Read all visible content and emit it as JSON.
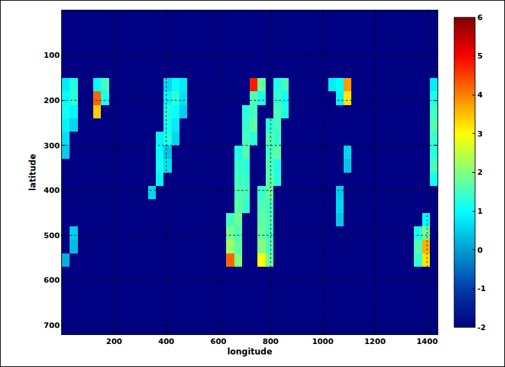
{
  "chart_data": {
    "type": "heatmap",
    "x_label": "longitude",
    "y_label": "latitude",
    "color": "jet",
    "grid": true,
    "xlim": [
      0,
      1440
    ],
    "ylim": [
      720,
      0
    ],
    "xticks": [
      200,
      400,
      600,
      800,
      1000,
      1200,
      1400
    ],
    "yticks": [
      100,
      200,
      300,
      400,
      500,
      600,
      700
    ],
    "clim": [
      -2,
      6
    ],
    "cticks": [
      -2,
      -1,
      0,
      1,
      2,
      3,
      4,
      5,
      6
    ],
    "x": [
      15,
      45,
      75,
      105,
      135,
      165,
      195,
      225,
      255,
      285,
      315,
      345,
      375,
      405,
      435,
      465,
      495,
      525,
      555,
      585,
      615,
      645,
      675,
      705,
      735,
      765,
      795,
      825,
      855,
      885,
      915,
      945,
      975,
      1005,
      1035,
      1065,
      1095,
      1125,
      1155,
      1185,
      1215,
      1245,
      1275,
      1305,
      1335,
      1365,
      1395,
      1425
    ],
    "y": [
      15,
      45,
      75,
      105,
      135,
      165,
      195,
      225,
      255,
      285,
      315,
      345,
      375,
      405,
      435,
      465,
      495,
      525,
      555,
      585,
      615,
      645,
      675,
      705
    ],
    "cells": [
      [
        -2,
        -2,
        -2,
        -2,
        -2,
        -2,
        -2,
        -2,
        -2,
        -2,
        -2,
        -2,
        -2,
        -2,
        -2,
        -2,
        -2,
        -2,
        -2,
        -2,
        -2,
        -2,
        -2,
        -2,
        -2,
        -2,
        -2,
        -2,
        -2,
        -2,
        -2,
        -2,
        -2,
        -2,
        -2,
        -2,
        -2,
        -2,
        -2,
        -2,
        -2,
        -2,
        -2,
        -2,
        -2,
        -2,
        -2,
        -2
      ],
      [
        -2,
        -2,
        -2,
        -2,
        -2,
        -2,
        -2,
        -2,
        -2,
        -2,
        -2,
        -2,
        -2,
        -2,
        -2,
        -2,
        -2,
        -2,
        -2,
        -2,
        -2,
        -2,
        -2,
        -2,
        -2,
        -2,
        -2,
        -2,
        -2,
        -2,
        -2,
        -2,
        -2,
        -2,
        -2,
        -2,
        -2,
        -2,
        -2,
        -2,
        -2,
        -2,
        -2,
        -2,
        -2,
        -2,
        -2,
        -2
      ],
      [
        -2,
        -2,
        -2,
        -2,
        -2,
        -2,
        -2,
        -2,
        -2,
        -2,
        -2,
        -2,
        -2,
        -2,
        -2,
        -2,
        -2,
        -2,
        -2,
        -2,
        -2,
        -2,
        -2,
        -2,
        -2,
        -2,
        -2,
        -2,
        -2,
        -2,
        -2,
        -2,
        -2,
        -2,
        -2,
        -2,
        -2,
        -2,
        -2,
        -2,
        -2,
        -2,
        -2,
        -2,
        -2,
        -2,
        -2,
        -2
      ],
      [
        -2,
        -2,
        -2,
        -2,
        -2,
        -2,
        -2,
        -2,
        -2,
        -2,
        -2,
        -2,
        -2,
        -2,
        -2,
        -2,
        -2,
        -2,
        -2,
        -2,
        -2,
        -2,
        -2,
        -2,
        -2,
        -2,
        -2,
        -2,
        -2,
        -2,
        -2,
        -2,
        -2,
        -2,
        -2,
        -2,
        -2,
        -2,
        -2,
        -2,
        -2,
        -2,
        -2,
        -2,
        -2,
        -2,
        -2,
        -2
      ],
      [
        -2,
        -2,
        -2,
        -2,
        -2,
        -2,
        -2,
        -2,
        -2,
        -2,
        -2,
        -2,
        -2,
        -2,
        -2,
        -2,
        -2,
        -2,
        -2,
        -2,
        -2,
        -2,
        -2,
        -2,
        -2,
        -2,
        -2,
        -2,
        -2,
        -2,
        -2,
        -2,
        -2,
        -2,
        -2,
        -2,
        -2,
        -2,
        -2,
        -2,
        -2,
        -2,
        -2,
        -2,
        -2,
        -2,
        -2,
        -2
      ],
      [
        0.8,
        1.2,
        -2,
        -2,
        1.0,
        1.5,
        -2,
        -2,
        -2,
        -2,
        -2,
        -2,
        -2,
        0.6,
        1.0,
        0.8,
        -2,
        -2,
        -2,
        -2,
        -2,
        -2,
        -2,
        -2,
        4.8,
        1.8,
        -2,
        1.2,
        1.5,
        -2,
        -2,
        -2,
        -2,
        -2,
        0.8,
        1.0,
        3.8,
        -2,
        -2,
        -2,
        -2,
        -2,
        -2,
        -2,
        -2,
        -2,
        -2,
        0.8
      ],
      [
        1.0,
        1.3,
        -2,
        -2,
        4.2,
        1.2,
        -2,
        -2,
        -2,
        -2,
        -2,
        -2,
        -2,
        0.9,
        1.3,
        0.7,
        -2,
        -2,
        -2,
        -2,
        -2,
        -2,
        -2,
        -2,
        1.6,
        1.2,
        -2,
        1.4,
        1.1,
        -2,
        -2,
        -2,
        -2,
        -2,
        -2,
        0.9,
        3.2,
        -2,
        -2,
        -2,
        -2,
        -2,
        -2,
        -2,
        -2,
        -2,
        -2,
        1.2
      ],
      [
        1.1,
        0.9,
        -2,
        -2,
        3.4,
        -2,
        -2,
        -2,
        -2,
        -2,
        -2,
        -2,
        -2,
        1.2,
        1.0,
        0.5,
        -2,
        -2,
        -2,
        -2,
        -2,
        -2,
        -2,
        1.3,
        1.5,
        -2,
        -2,
        1.6,
        1.2,
        -2,
        -2,
        -2,
        -2,
        -2,
        -2,
        -2,
        -2,
        -2,
        -2,
        -2,
        -2,
        -2,
        -2,
        -2,
        -2,
        -2,
        -2,
        1.5
      ],
      [
        0.9,
        0.6,
        -2,
        -2,
        -2,
        -2,
        -2,
        -2,
        -2,
        -2,
        -2,
        -2,
        -2,
        1.1,
        0.8,
        -2,
        -2,
        -2,
        -2,
        -2,
        -2,
        -2,
        -2,
        1.4,
        1.7,
        -2,
        1.3,
        1.5,
        -2,
        -2,
        -2,
        -2,
        -2,
        -2,
        -2,
        -2,
        -2,
        -2,
        -2,
        -2,
        -2,
        -2,
        -2,
        -2,
        -2,
        -2,
        -2,
        1.6
      ],
      [
        0.7,
        -2,
        -2,
        -2,
        -2,
        -2,
        -2,
        -2,
        -2,
        -2,
        -2,
        -2,
        0.9,
        1.2,
        0.6,
        -2,
        -2,
        -2,
        -2,
        -2,
        -2,
        -2,
        -2,
        1.5,
        1.3,
        -2,
        1.6,
        1.4,
        -2,
        -2,
        -2,
        -2,
        -2,
        -2,
        -2,
        -2,
        -2,
        -2,
        -2,
        -2,
        -2,
        -2,
        -2,
        -2,
        -2,
        -2,
        -2,
        1.4
      ],
      [
        0.5,
        -2,
        -2,
        -2,
        -2,
        -2,
        -2,
        -2,
        -2,
        -2,
        -2,
        -2,
        1.0,
        0.4,
        -2,
        -2,
        -2,
        -2,
        -2,
        -2,
        -2,
        -2,
        1.2,
        1.6,
        -2,
        -2,
        1.5,
        1.7,
        -2,
        -2,
        -2,
        -2,
        -2,
        -2,
        -2,
        -2,
        0.6,
        -2,
        -2,
        -2,
        -2,
        -2,
        -2,
        -2,
        -2,
        -2,
        -2,
        1.3
      ],
      [
        -2,
        -2,
        -2,
        -2,
        -2,
        -2,
        -2,
        -2,
        -2,
        -2,
        -2,
        -2,
        1.1,
        0.7,
        -2,
        -2,
        -2,
        -2,
        -2,
        -2,
        -2,
        -2,
        1.4,
        1.3,
        -2,
        -2,
        1.6,
        1.2,
        -2,
        -2,
        -2,
        -2,
        -2,
        -2,
        -2,
        -2,
        0.4,
        -2,
        -2,
        -2,
        -2,
        -2,
        -2,
        -2,
        -2,
        -2,
        -2,
        1.5
      ],
      [
        -2,
        -2,
        -2,
        -2,
        -2,
        -2,
        -2,
        -2,
        -2,
        -2,
        -2,
        -2,
        0.9,
        -2,
        -2,
        -2,
        -2,
        -2,
        -2,
        -2,
        -2,
        -2,
        1.5,
        1.4,
        -2,
        -2,
        1.7,
        1.3,
        -2,
        -2,
        -2,
        -2,
        -2,
        -2,
        -2,
        -2,
        -2,
        -2,
        -2,
        -2,
        -2,
        -2,
        -2,
        -2,
        -2,
        -2,
        -2,
        1.1
      ],
      [
        -2,
        -2,
        -2,
        -2,
        -2,
        -2,
        -2,
        -2,
        -2,
        -2,
        -2,
        0.6,
        -2,
        -2,
        -2,
        -2,
        -2,
        -2,
        -2,
        -2,
        -2,
        -2,
        1.6,
        1.5,
        -2,
        1.4,
        1.8,
        -2,
        -2,
        -2,
        -2,
        -2,
        -2,
        -2,
        -2,
        0.5,
        -2,
        -2,
        -2,
        -2,
        -2,
        -2,
        -2,
        -2,
        -2,
        -2,
        -2,
        -2
      ],
      [
        -2,
        -2,
        -2,
        -2,
        -2,
        -2,
        -2,
        -2,
        -2,
        -2,
        -2,
        -2,
        -2,
        -2,
        -2,
        -2,
        -2,
        -2,
        -2,
        -2,
        -2,
        -2,
        1.7,
        1.4,
        -2,
        1.6,
        1.5,
        -2,
        -2,
        -2,
        -2,
        -2,
        -2,
        -2,
        -2,
        0.6,
        -2,
        -2,
        -2,
        -2,
        -2,
        -2,
        -2,
        -2,
        -2,
        -2,
        -2,
        -2
      ],
      [
        -2,
        -2,
        -2,
        -2,
        -2,
        -2,
        -2,
        -2,
        -2,
        -2,
        -2,
        -2,
        -2,
        -2,
        -2,
        -2,
        -2,
        -2,
        -2,
        -2,
        -2,
        1.5,
        1.8,
        -2,
        -2,
        1.7,
        1.6,
        -2,
        -2,
        -2,
        -2,
        -2,
        -2,
        -2,
        -2,
        0.4,
        -2,
        -2,
        -2,
        -2,
        -2,
        -2,
        -2,
        -2,
        -2,
        -2,
        1.0,
        -2
      ],
      [
        -2,
        0.5,
        -2,
        -2,
        -2,
        -2,
        -2,
        -2,
        -2,
        -2,
        -2,
        -2,
        -2,
        -2,
        -2,
        -2,
        -2,
        -2,
        -2,
        -2,
        -2,
        1.9,
        1.6,
        -2,
        -2,
        1.8,
        1.5,
        -2,
        -2,
        -2,
        -2,
        -2,
        -2,
        -2,
        -2,
        -2,
        -2,
        -2,
        -2,
        -2,
        -2,
        -2,
        -2,
        -2,
        -2,
        1.2,
        1.9,
        -2
      ],
      [
        -2,
        0.3,
        -2,
        -2,
        -2,
        -2,
        -2,
        -2,
        -2,
        -2,
        -2,
        -2,
        -2,
        -2,
        -2,
        -2,
        -2,
        -2,
        -2,
        -2,
        -2,
        2.2,
        1.7,
        -2,
        -2,
        2.0,
        1.6,
        -2,
        -2,
        -2,
        -2,
        -2,
        -2,
        -2,
        -2,
        -2,
        -2,
        -2,
        -2,
        -2,
        -2,
        -2,
        -2,
        -2,
        -2,
        1.6,
        3.6,
        -2
      ],
      [
        0.2,
        -2,
        -2,
        -2,
        -2,
        -2,
        -2,
        -2,
        -2,
        -2,
        -2,
        -2,
        -2,
        -2,
        -2,
        -2,
        -2,
        -2,
        -2,
        -2,
        -2,
        4.2,
        2.0,
        -2,
        -2,
        3.0,
        1.8,
        -2,
        -2,
        -2,
        -2,
        -2,
        -2,
        -2,
        -2,
        -2,
        -2,
        -2,
        -2,
        -2,
        -2,
        -2,
        -2,
        -2,
        -2,
        1.4,
        3.2,
        -2
      ],
      [
        -2,
        -2,
        -2,
        -2,
        -2,
        -2,
        -2,
        -2,
        -2,
        -2,
        -2,
        -2,
        -2,
        -2,
        -2,
        -2,
        -2,
        -2,
        -2,
        -2,
        -2,
        -2,
        -2,
        -2,
        -2,
        -2,
        -2,
        -2,
        -2,
        -2,
        -2,
        -2,
        -2,
        -2,
        -2,
        -2,
        -2,
        -2,
        -2,
        -2,
        -2,
        -2,
        -2,
        -2,
        -2,
        -2,
        -2,
        -2
      ],
      [
        -2,
        -2,
        -2,
        -2,
        -2,
        -2,
        -2,
        -2,
        -2,
        -2,
        -2,
        -2,
        -2,
        -2,
        -2,
        -2,
        -2,
        -2,
        -2,
        -2,
        -2,
        -2,
        -2,
        -2,
        -2,
        -2,
        -2,
        -2,
        -2,
        -2,
        -2,
        -2,
        -2,
        -2,
        -2,
        -2,
        -2,
        -2,
        -2,
        -2,
        -2,
        -2,
        -2,
        -2,
        -2,
        -2,
        -2,
        -2
      ],
      [
        -2,
        -2,
        -2,
        -2,
        -2,
        -2,
        -2,
        -2,
        -2,
        -2,
        -2,
        -2,
        -2,
        -2,
        -2,
        -2,
        -2,
        -2,
        -2,
        -2,
        -2,
        -2,
        -2,
        -2,
        -2,
        -2,
        -2,
        -2,
        -2,
        -2,
        -2,
        -2,
        -2,
        -2,
        -2,
        -2,
        -2,
        -2,
        -2,
        -2,
        -2,
        -2,
        -2,
        -2,
        -2,
        -2,
        -2,
        -2
      ],
      [
        -2,
        -2,
        -2,
        -2,
        -2,
        -2,
        -2,
        -2,
        -2,
        -2,
        -2,
        -2,
        -2,
        -2,
        -2,
        -2,
        -2,
        -2,
        -2,
        -2,
        -2,
        -2,
        -2,
        -2,
        -2,
        -2,
        -2,
        -2,
        -2,
        -2,
        -2,
        -2,
        -2,
        -2,
        -2,
        -2,
        -2,
        -2,
        -2,
        -2,
        -2,
        -2,
        -2,
        -2,
        -2,
        -2,
        -2,
        -2
      ],
      [
        -2,
        -2,
        -2,
        -2,
        -2,
        -2,
        -2,
        -2,
        -2,
        -2,
        -2,
        -2,
        -2,
        -2,
        -2,
        -2,
        -2,
        -2,
        -2,
        -2,
        -2,
        -2,
        -2,
        -2,
        -2,
        -2,
        -2,
        -2,
        -2,
        -2,
        -2,
        -2,
        -2,
        -2,
        -2,
        -2,
        -2,
        -2,
        -2,
        -2,
        -2,
        -2,
        -2,
        -2,
        -2,
        -2,
        -2,
        -2
      ]
    ]
  }
}
